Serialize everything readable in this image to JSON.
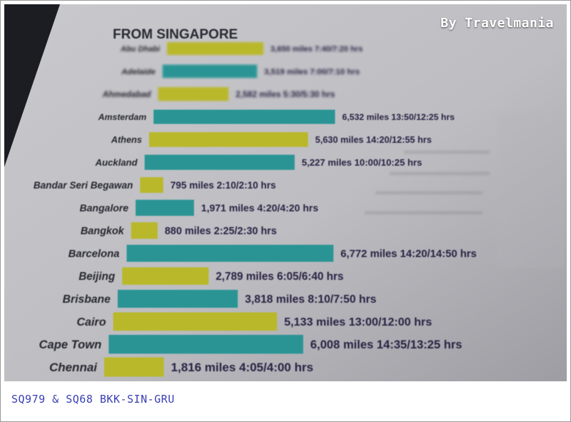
{
  "watermark": "By Travelmania",
  "caption": "SQ979 & SQ68 BKK-SIN-GRU",
  "chart_data": {
    "type": "bar",
    "title": "FROM SINGAPORE",
    "unit": "miles",
    "categories": [
      "Abu Dhabi",
      "Adelaide",
      "Ahmedabad",
      "Amsterdam",
      "Athens",
      "Auckland",
      "Bandar Seri Begawan",
      "Bangalore",
      "Bangkok",
      "Barcelona",
      "Beijing",
      "Brisbane",
      "Cairo",
      "Cape Town",
      "Chennai"
    ],
    "values": [
      3650,
      3519,
      2582,
      6532,
      5630,
      5227,
      795,
      1971,
      880,
      6772,
      2789,
      3818,
      5133,
      6008,
      1816
    ],
    "labels": [
      "3,650 miles 7:40/7:20 hrs",
      "3,519 miles 7:00/7:10 hrs",
      "2,582 miles 5:30/5:30 hrs",
      "6,532 miles 13:50/12:25 hrs",
      "5,630 miles 14:20/12:55 hrs",
      "5,227 miles 10:00/10:25 hrs",
      "795 miles 2:10/2:10 hrs",
      "1,971 miles 4:20/4:20 hrs",
      "880 miles 2:25/2:30 hrs",
      "6,772 miles 14:20/14:50 hrs",
      "2,789 miles 6:05/6:40 hrs",
      "3,818 miles 8:10/7:50 hrs",
      "5,133 miles 13:00/12:00 hrs",
      "6,008 miles 14:35/13:25 hrs",
      "1,816 miles 4:05/4:00 hrs"
    ],
    "colors": [
      "#b9b82a",
      "#2b9494",
      "#b9b82a",
      "#2b9494",
      "#b9b82a",
      "#2b9494",
      "#b9b82a",
      "#2b9494",
      "#b9b82a",
      "#2b9494",
      "#b9b82a",
      "#2b9494",
      "#b9b82a",
      "#2b9494",
      "#b9b82a"
    ]
  }
}
